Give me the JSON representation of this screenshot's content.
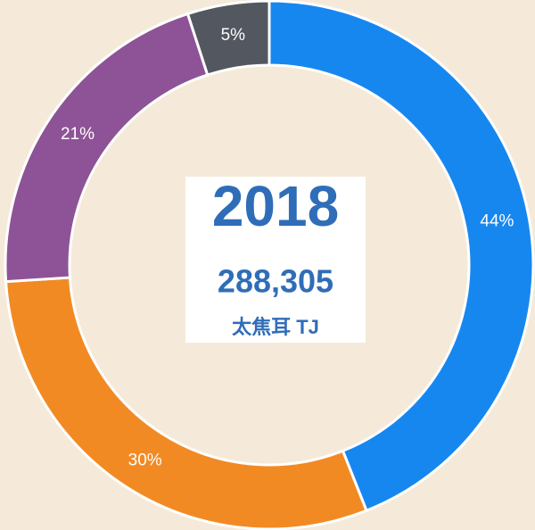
{
  "chart_data": {
    "type": "donut",
    "values": [
      44,
      30,
      21,
      5
    ],
    "value_labels": [
      "44%",
      "30%",
      "21%",
      "5%"
    ],
    "colors": [
      "#1787f0",
      "#f28a23",
      "#8e5396",
      "#53575f"
    ],
    "center_title": "2018",
    "center_value": "288,305",
    "center_unit": "太焦耳 TJ"
  }
}
